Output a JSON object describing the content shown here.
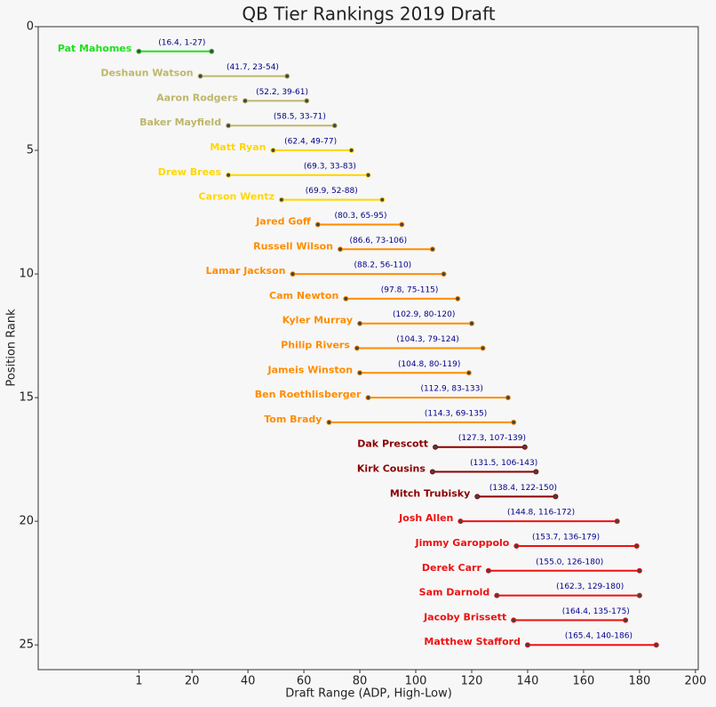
{
  "chart_data": {
    "type": "range",
    "title": "QB Tier Rankings 2019 Draft",
    "xlabel": "Draft Range (ADP, High-Low)",
    "ylabel": "Position Rank",
    "xlim": [
      -35,
      201
    ],
    "ylim": [
      0,
      26
    ],
    "y_inverted": true,
    "xticks": [
      1,
      20,
      40,
      60,
      80,
      100,
      120,
      140,
      160,
      180,
      200
    ],
    "yticks": [
      0,
      5,
      10,
      15,
      20,
      25
    ],
    "dot_color": "#444444",
    "label_color": "#00008b",
    "categories": [
      "Pat Mahomes",
      "Deshaun Watson",
      "Aaron Rodgers",
      "Baker Mayfield",
      "Matt Ryan",
      "Drew Brees",
      "Carson Wentz",
      "Jared Goff",
      "Russell Wilson",
      "Lamar Jackson",
      "Cam Newton",
      "Kyler Murray",
      "Philip Rivers",
      "Jameis Winston",
      "Ben Roethlisberger",
      "Tom Brady",
      "Dak Prescott",
      "Kirk Cousins",
      "Mitch Trubisky",
      "Josh Allen",
      "Jimmy Garoppolo",
      "Derek Carr",
      "Sam Darnold",
      "Jacoby Brissett",
      "Matthew Stafford"
    ],
    "y": [
      1,
      2,
      3,
      4,
      5,
      6,
      7,
      8,
      9,
      10,
      11,
      12,
      13,
      14,
      15,
      16,
      17,
      18,
      19,
      20,
      21,
      22,
      23,
      24,
      25
    ],
    "values": [
      16.4,
      41.7,
      52.2,
      58.5,
      62.4,
      69.3,
      69.9,
      80.3,
      86.6,
      88.2,
      97.8,
      102.9,
      104.3,
      104.8,
      112.9,
      114.3,
      127.3,
      131.5,
      138.4,
      144.8,
      153.7,
      155.0,
      162.3,
      164.4,
      165.4
    ],
    "low": [
      1,
      23,
      39,
      33,
      49,
      33,
      52,
      65,
      73,
      56,
      75,
      80,
      79,
      80,
      83,
      69,
      107,
      106,
      122,
      116,
      136,
      126,
      129,
      135,
      140
    ],
    "high": [
      27,
      54,
      61,
      71,
      77,
      83,
      88,
      95,
      106,
      110,
      115,
      120,
      124,
      119,
      133,
      135,
      139,
      143,
      150,
      172,
      179,
      180,
      180,
      175,
      186
    ],
    "value_labels": [
      "(16.4, 1-27)",
      "(41.7, 23-54)",
      "(52.2, 39-61)",
      "(58.5, 33-71)",
      "(62.4, 49-77)",
      "(69.3, 33-83)",
      "(69.9, 52-88)",
      "(80.3, 65-95)",
      "(86.6, 73-106)",
      "(88.2, 56-110)",
      "(97.8, 75-115)",
      "(102.9, 80-120)",
      "(104.3, 79-124)",
      "(104.8, 80-119)",
      "(112.9, 83-133)",
      "(114.3, 69-135)",
      "(127.3, 107-139)",
      "(131.5, 106-143)",
      "(138.4, 122-150)",
      "(144.8, 116-172)",
      "(153.7, 136-179)",
      "(155.0, 126-180)",
      "(162.3, 129-180)",
      "(164.4, 135-175)",
      "(165.4, 140-186)"
    ],
    "colors": [
      "#1ee01e",
      "#bdb76b",
      "#bdb76b",
      "#bdb76b",
      "#ffd700",
      "#ffd700",
      "#ffd700",
      "#ff8c00",
      "#ff8c00",
      "#ff8c00",
      "#ff8c00",
      "#ff8c00",
      "#ff8c00",
      "#ff8c00",
      "#ff8c00",
      "#ff8c00",
      "#8b0000",
      "#8b0000",
      "#8b0000",
      "#ee1111",
      "#ee1111",
      "#ee1111",
      "#ee1111",
      "#ee1111",
      "#ee1111"
    ]
  }
}
